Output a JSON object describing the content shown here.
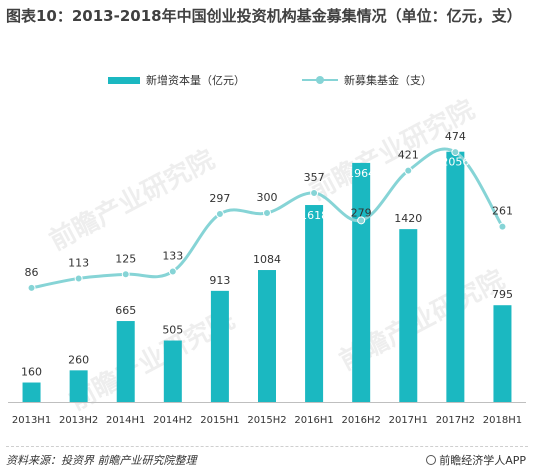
{
  "title": "图表10：2013-2018年中国创业投资机构基金募集情况（单位：亿元，支）",
  "legend": {
    "bar_label": "新增资本量（亿元）",
    "line_label": "新募集基金（支）"
  },
  "watermark": "前瞻产业研究院",
  "footer": {
    "source": "资料来源：投资界 前瞻产业研究院整理",
    "brand": "前瞻经济学人APP"
  },
  "colors": {
    "bar": "#1BB8C1",
    "line": "#86D4D6"
  },
  "chart_data": {
    "type": "bar",
    "categories": [
      "2013H1",
      "2013H2",
      "2014H1",
      "2014H2",
      "2015H1",
      "2015H2",
      "2016H1",
      "2016H2",
      "2017H1",
      "2017H2",
      "2018H1"
    ],
    "series": [
      {
        "name": "新增资本量（亿元）",
        "type": "bar",
        "values": [
          160,
          260,
          665,
          505,
          913,
          1084,
          1618,
          1964,
          1420,
          2056,
          795
        ]
      },
      {
        "name": "新募集基金（支）",
        "type": "line",
        "values": [
          86,
          113,
          125,
          133,
          297,
          300,
          357,
          279,
          421,
          474,
          261
        ]
      }
    ],
    "bar_ylim": [
      0,
      2300
    ],
    "line_ylim": [
      -240,
      560
    ],
    "grid": false,
    "legend_position": "top"
  }
}
